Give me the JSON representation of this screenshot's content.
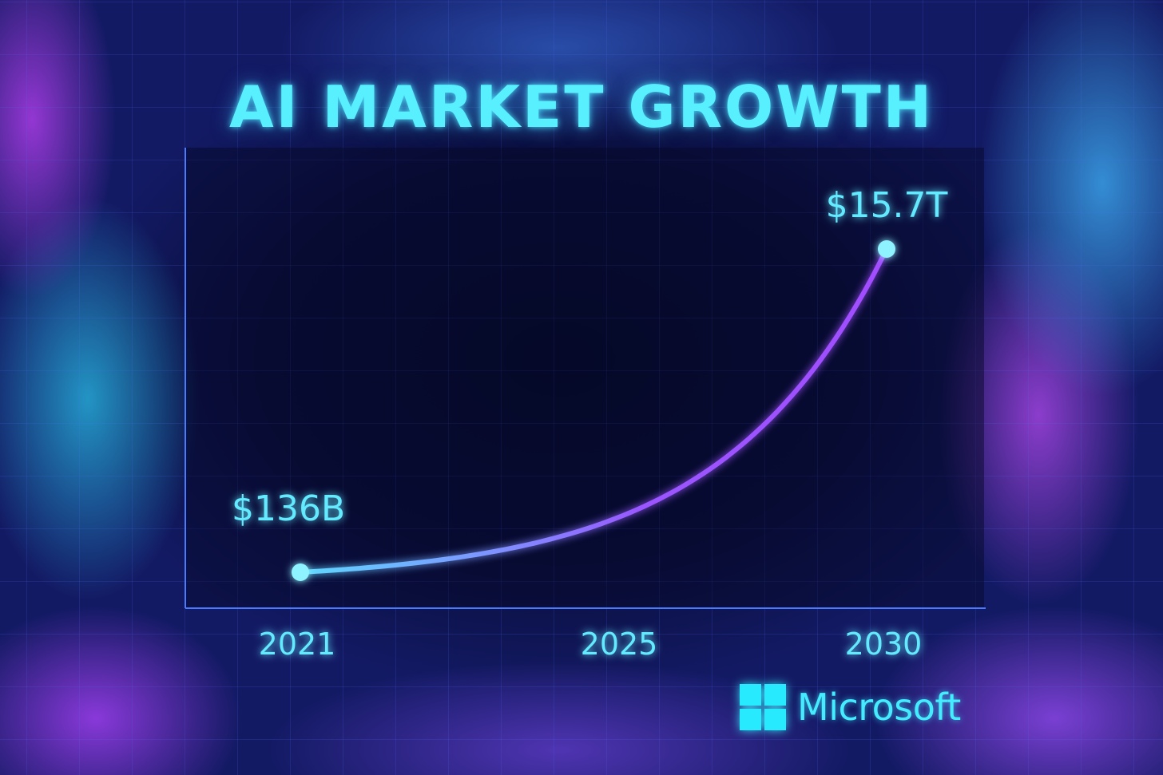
{
  "chart_data": {
    "type": "line",
    "title": "AI MARKET GROWTH",
    "xlabel": "",
    "ylabel": "",
    "x_ticks": [
      "2021",
      "2025",
      "2030"
    ],
    "points": [
      {
        "x": 2021,
        "value": 0.136,
        "label": "$136B"
      },
      {
        "x": 2030,
        "value": 15.7,
        "label": "$15.7T"
      }
    ],
    "unit": "trillion USD",
    "grid": true,
    "colors": {
      "text": "#5ff0ff",
      "line_start": "#5fd8ff",
      "line_end": "#a24dff",
      "marker": "#8ff3ff",
      "axis": "#4a7bff"
    }
  },
  "brand": {
    "name": "Microsoft",
    "logo_icon": "windows-four-squares-icon"
  }
}
